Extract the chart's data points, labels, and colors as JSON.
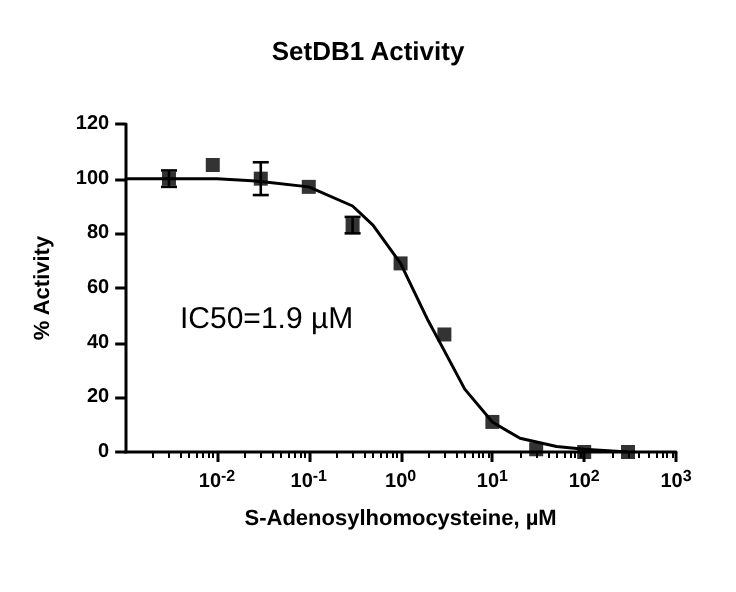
{
  "chart_data": {
    "type": "scatter",
    "title": "SetDB1 Activity",
    "xlabel": "S-Adenosylhomocysteine, µM",
    "ylabel": "% Activity",
    "log": "x",
    "marker": "square",
    "grid": false,
    "annotations": [
      "IC50=1.9 µM"
    ],
    "xlim": [
      0.001,
      1000
    ],
    "xticks": [
      {
        "value": 0.01,
        "label": "10$^{-2}$"
      },
      {
        "value": 0.1,
        "label": "10$^{-1}$"
      },
      {
        "value": 1,
        "label": "10$^{0}$"
      },
      {
        "value": 10,
        "label": "10$^{1}$"
      },
      {
        "value": 100,
        "label": "10$^{2}$"
      },
      {
        "value": 1000,
        "label": "10$^{3}$"
      }
    ],
    "ylim": [
      0,
      120
    ],
    "yticks": [
      0,
      20,
      40,
      60,
      80,
      100,
      120
    ],
    "series": [
      {
        "type": "scatter",
        "color": "#000000",
        "x": [
          0.003,
          0.009,
          0.03,
          0.1,
          0.3,
          1,
          3,
          10,
          30,
          100,
          300
        ],
        "values": [
          100,
          105,
          100,
          97,
          83,
          69,
          43,
          11,
          1,
          0,
          0
        ],
        "errors": [
          3,
          null,
          6,
          null,
          3,
          null,
          null,
          null,
          null,
          null,
          null
        ]
      },
      {
        "type": "line",
        "color": "#000000",
        "marker": "none",
        "x": [
          0.001,
          0.01,
          0.03,
          0.1,
          0.3,
          0.5,
          1,
          2,
          3,
          5,
          10,
          20,
          50,
          100,
          300
        ],
        "values": [
          100,
          100,
          99,
          97,
          90,
          83,
          69,
          48,
          37,
          23,
          11,
          5,
          2,
          1,
          0
        ]
      }
    ]
  }
}
